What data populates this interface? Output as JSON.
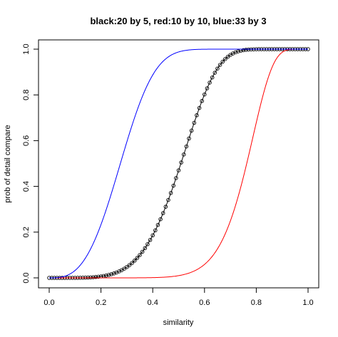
{
  "chart_data": {
    "type": "line",
    "title": "black:20 by 5, red:10 by 10, blue:33 by 3",
    "xlabel": "similarity",
    "ylabel": "prob of detail compare",
    "xlim": [
      0.0,
      1.0
    ],
    "ylim": [
      0.0,
      1.0
    ],
    "x_ticks": [
      "0.0",
      "0.2",
      "0.4",
      "0.6",
      "0.8",
      "1.0"
    ],
    "y_ticks": [
      "0.0",
      "0.2",
      "0.4",
      "0.6",
      "0.8",
      "1.0"
    ],
    "grid": false,
    "legend": "none",
    "series": [
      {
        "color": "#000000",
        "style": "line-with-open-circles",
        "bands": 20,
        "rows": 5,
        "x_step": 0.01
      },
      {
        "color": "#ff0000",
        "style": "line",
        "bands": 10,
        "rows": 10
      },
      {
        "color": "#0000ff",
        "style": "line",
        "bands": 33,
        "rows": 3
      }
    ]
  }
}
